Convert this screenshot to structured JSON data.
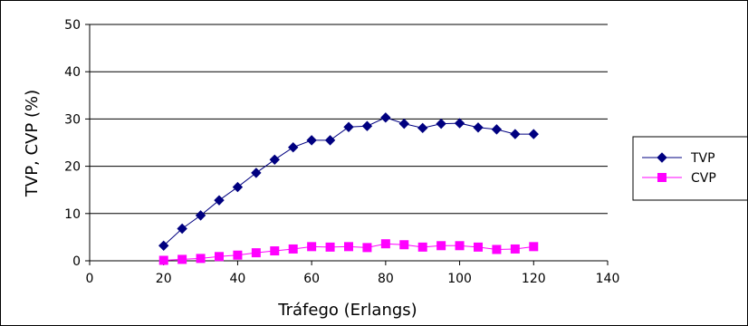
{
  "chart_data": {
    "type": "line",
    "title": "",
    "xlabel": "Tráfego (Erlangs)",
    "ylabel": "TVP, CVP (%)",
    "xlim": [
      0,
      140
    ],
    "ylim": [
      0,
      50
    ],
    "xticks": [
      0,
      20,
      40,
      60,
      80,
      100,
      120,
      140
    ],
    "yticks": [
      0,
      10,
      20,
      30,
      40,
      50
    ],
    "grid": "horizontal",
    "legend": "right",
    "x": [
      20,
      25,
      30,
      35,
      40,
      45,
      50,
      55,
      60,
      65,
      70,
      75,
      80,
      85,
      90,
      95,
      100,
      105,
      110,
      115,
      120
    ],
    "series": [
      {
        "name": "TVP",
        "color": "#000080",
        "marker": "diamond",
        "values": [
          3.2,
          6.8,
          9.6,
          12.8,
          15.6,
          18.6,
          21.4,
          24.0,
          25.5,
          25.5,
          28.3,
          28.5,
          30.3,
          29.0,
          28.1,
          29.0,
          29.1,
          28.2,
          27.8,
          26.8,
          26.8
        ]
      },
      {
        "name": "CVP",
        "color": "#FF00FF",
        "marker": "square",
        "values": [
          0.1,
          0.3,
          0.5,
          0.9,
          1.2,
          1.7,
          2.1,
          2.5,
          3.0,
          2.9,
          3.0,
          2.8,
          3.6,
          3.4,
          2.9,
          3.2,
          3.2,
          2.9,
          2.4,
          2.5,
          3.0
        ]
      }
    ]
  }
}
